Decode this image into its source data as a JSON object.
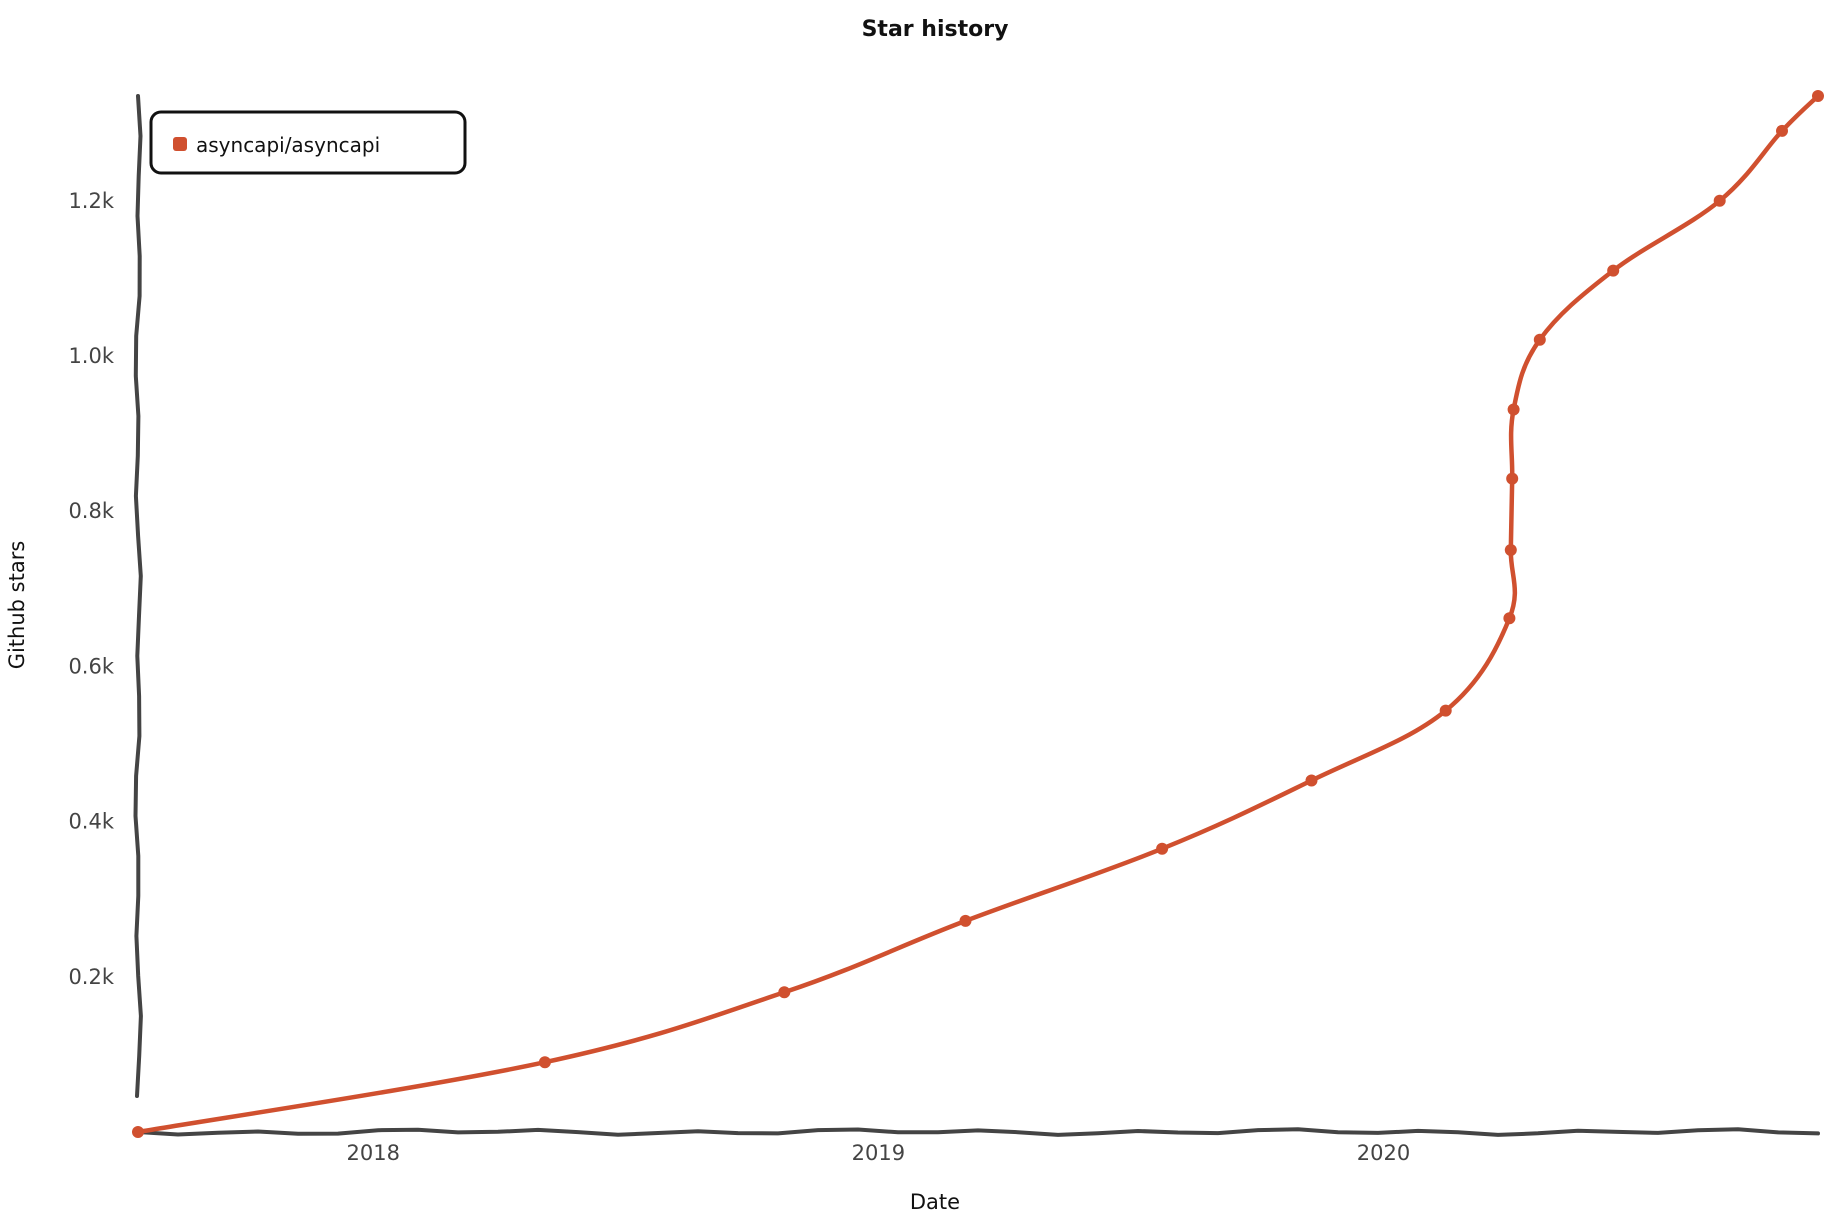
{
  "chart_data": {
    "type": "line",
    "title": "Star history",
    "xlabel": "Date",
    "ylabel": "Github stars",
    "x_ticks": [
      "2018",
      "2019",
      "2020"
    ],
    "y_ticks": [
      "0.2k",
      "0.4k",
      "0.6k",
      "0.8k",
      "1.0k",
      "1.2k"
    ],
    "y_tick_values": [
      200,
      400,
      600,
      800,
      1000,
      1200
    ],
    "xlim": [
      "2017-07-15",
      "2020-11-10"
    ],
    "ylim": [
      0,
      1335
    ],
    "legend_position": "top-left",
    "series": [
      {
        "name": "asyncapi/asyncapi",
        "color": "#d0502f",
        "points": [
          {
            "x": "2017-07-15",
            "y": 0
          },
          {
            "x": "2018-05-05",
            "y": 90
          },
          {
            "x": "2018-10-25",
            "y": 180
          },
          {
            "x": "2019-03-05",
            "y": 272
          },
          {
            "x": "2019-07-25",
            "y": 365
          },
          {
            "x": "2019-11-10",
            "y": 453
          },
          {
            "x": "2020-02-15",
            "y": 543
          },
          {
            "x": "2020-04-01",
            "y": 662
          },
          {
            "x": "2020-04-02",
            "y": 750
          },
          {
            "x": "2020-04-03",
            "y": 842
          },
          {
            "x": "2020-04-04",
            "y": 931
          },
          {
            "x": "2020-04-23",
            "y": 1021
          },
          {
            "x": "2020-06-15",
            "y": 1110
          },
          {
            "x": "2020-08-31",
            "y": 1200
          },
          {
            "x": "2020-10-15",
            "y": 1290
          },
          {
            "x": "2020-11-10",
            "y": 1335
          }
        ]
      }
    ]
  }
}
